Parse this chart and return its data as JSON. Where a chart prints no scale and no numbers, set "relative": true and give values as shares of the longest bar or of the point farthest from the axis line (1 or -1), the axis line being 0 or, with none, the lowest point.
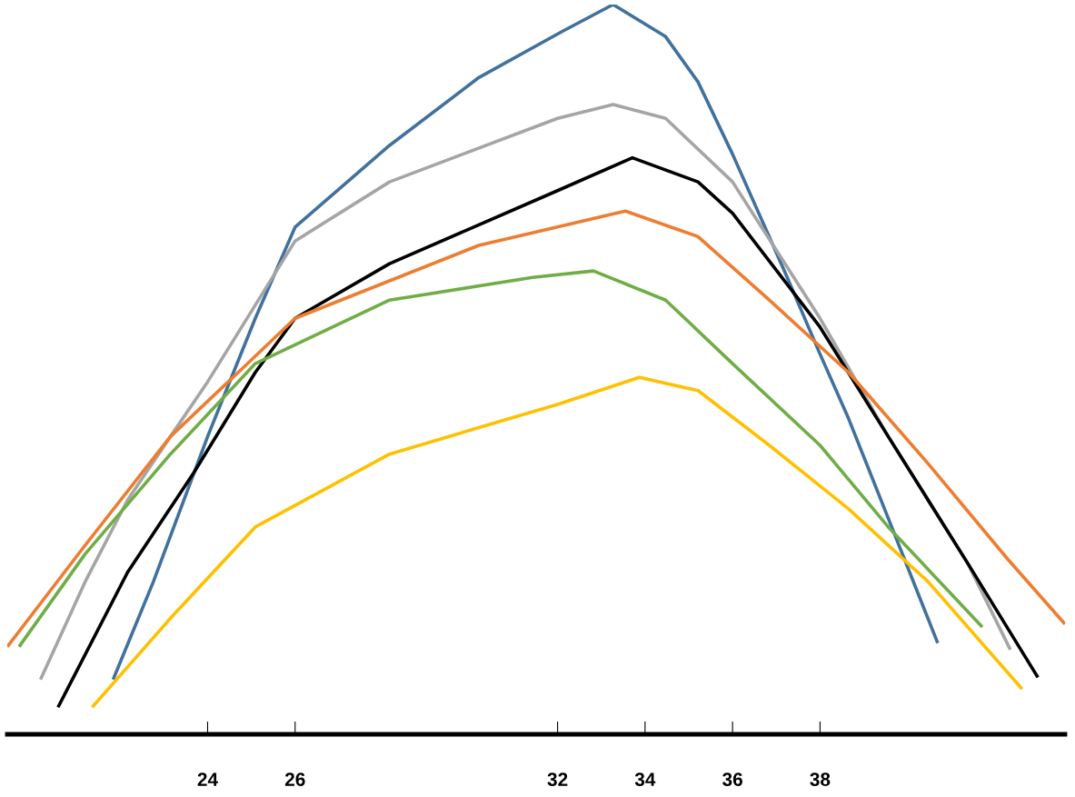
{
  "chart_data": {
    "type": "line",
    "relative": true,
    "xlim": [
      19.42,
      43.6
    ],
    "xticks": [
      24,
      26,
      32,
      34,
      36,
      38
    ],
    "grid": false,
    "marker": "none",
    "line_style": "solid",
    "tick_labels": "x",
    "series": [
      {
        "color": "#41719c",
        "x": [
          21.84,
          22.76,
          24,
          25.09,
          26,
          28.16,
          30.2,
          32.1,
          33.27,
          34.47,
          35.21,
          36,
          37.2,
          38,
          38.65,
          39.56,
          40.69
        ],
        "values": [
          0.075,
          0.209,
          0.408,
          0.57,
          0.695,
          0.807,
          0.9,
          0.963,
          1,
          0.956,
          0.894,
          0.795,
          0.633,
          0.521,
          0.433,
          0.296,
          0.125
        ]
      },
      {
        "color": "#a5a5a5",
        "x": [
          20.18,
          21.2,
          22.17,
          23.15,
          24,
          26,
          28.16,
          32,
          33.27,
          34.47,
          36,
          38,
          39.56,
          41.38,
          42.35
        ],
        "values": [
          0.075,
          0.209,
          0.321,
          0.408,
          0.483,
          0.676,
          0.757,
          0.844,
          0.863,
          0.844,
          0.757,
          0.57,
          0.408,
          0.234,
          0.116
        ]
      },
      {
        "color": "#000000",
        "x": [
          20.58,
          22.17,
          23.69,
          25.09,
          26,
          28.16,
          32,
          33.71,
          35.21,
          36,
          38,
          39.56,
          41.38,
          42.98
        ],
        "values": [
          0.037,
          0.222,
          0.359,
          0.496,
          0.57,
          0.645,
          0.745,
          0.79,
          0.757,
          0.714,
          0.558,
          0.408,
          0.234,
          0.078
        ]
      },
      {
        "color": "#ed7d31",
        "x": [
          19.42,
          21.2,
          23.15,
          24.7,
          26,
          30.2,
          33.55,
          35.21,
          36.84,
          38.65,
          40.47,
          42.29,
          43.6
        ],
        "values": [
          0.12,
          0.259,
          0.408,
          0.496,
          0.57,
          0.67,
          0.717,
          0.682,
          0.595,
          0.496,
          0.371,
          0.24,
          0.151
        ]
      },
      {
        "color": "#70ad47",
        "x": [
          19.69,
          21.2,
          23.15,
          25.09,
          28.16,
          31.43,
          32.82,
          34.47,
          36,
          38,
          39.56,
          41.71
        ],
        "values": [
          0.12,
          0.247,
          0.384,
          0.508,
          0.595,
          0.626,
          0.635,
          0.595,
          0.508,
          0.396,
          0.284,
          0.147
        ]
      },
      {
        "color": "#ffc000",
        "x": [
          21.36,
          23.15,
          25.09,
          28.16,
          32,
          33.87,
          35.21,
          36.84,
          38.65,
          40.47,
          42.62
        ],
        "values": [
          0.037,
          0.159,
          0.284,
          0.384,
          0.452,
          0.489,
          0.471,
          0.396,
          0.309,
          0.209,
          0.062
        ]
      }
    ]
  }
}
